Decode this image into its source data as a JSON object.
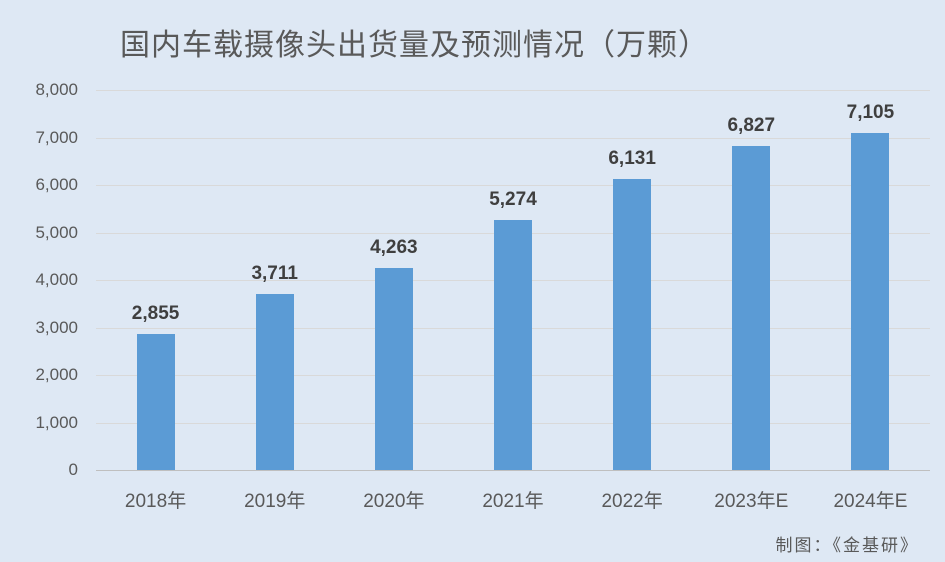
{
  "chart_data": {
    "type": "bar",
    "title": "国内车载摄像头出货量及预测情况（万颗）",
    "categories": [
      "2018年",
      "2019年",
      "2020年",
      "2021年",
      "2022年",
      "2023年E",
      "2024年E"
    ],
    "values": [
      2855,
      3711,
      4263,
      5274,
      6131,
      6827,
      7105
    ],
    "value_labels": [
      "2,855",
      "3,711",
      "4,263",
      "5,274",
      "6,131",
      "6,827",
      "7,105"
    ],
    "xlabel": "",
    "ylabel": "",
    "ylim": [
      0,
      8000
    ],
    "ytick_interval": 1000,
    "ytick_labels": [
      "0",
      "1,000",
      "2,000",
      "3,000",
      "4,000",
      "5,000",
      "6,000",
      "7,000",
      "8,000"
    ],
    "grid": "horizontal",
    "legend": "none",
    "credit": "制图：《金基研》",
    "colors": {
      "background": "#dee8f4",
      "bar": "#5b9bd5",
      "gridline": "#d9d9d9",
      "axis_line": "#bfbfbf",
      "title_text": "#595959",
      "tick_text": "#595959",
      "value_label_text": "#3f3f3f"
    }
  }
}
